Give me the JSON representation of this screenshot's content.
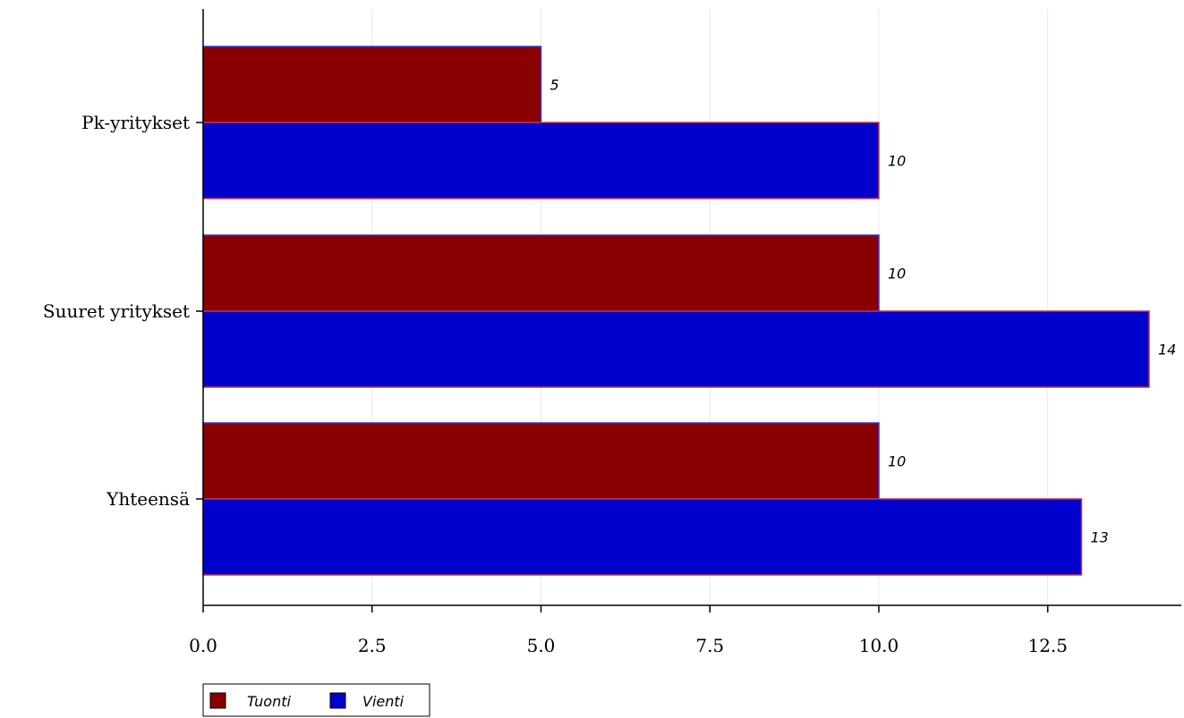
{
  "chart_data": {
    "type": "bar",
    "orientation": "horizontal",
    "categories": [
      "Pk-yritykset",
      "Suuret yritykset",
      "Yhteensä"
    ],
    "series": [
      {
        "name": "Tuonti",
        "values": [
          5,
          10,
          10
        ],
        "color": "#880000"
      },
      {
        "name": "Vienti",
        "values": [
          10,
          14,
          13
        ],
        "color": "#0000cc"
      }
    ],
    "xlim": [
      0,
      14.5
    ],
    "xticks": [
      0,
      2.5,
      5,
      7.5,
      10,
      12.5
    ],
    "xtick_labels": [
      "0.0",
      "2.5",
      "5.0",
      "7.5",
      "10.0",
      "12.5"
    ],
    "grid": true,
    "legend": "bottom-left",
    "title": "",
    "xlabel": "",
    "ylabel": ""
  }
}
